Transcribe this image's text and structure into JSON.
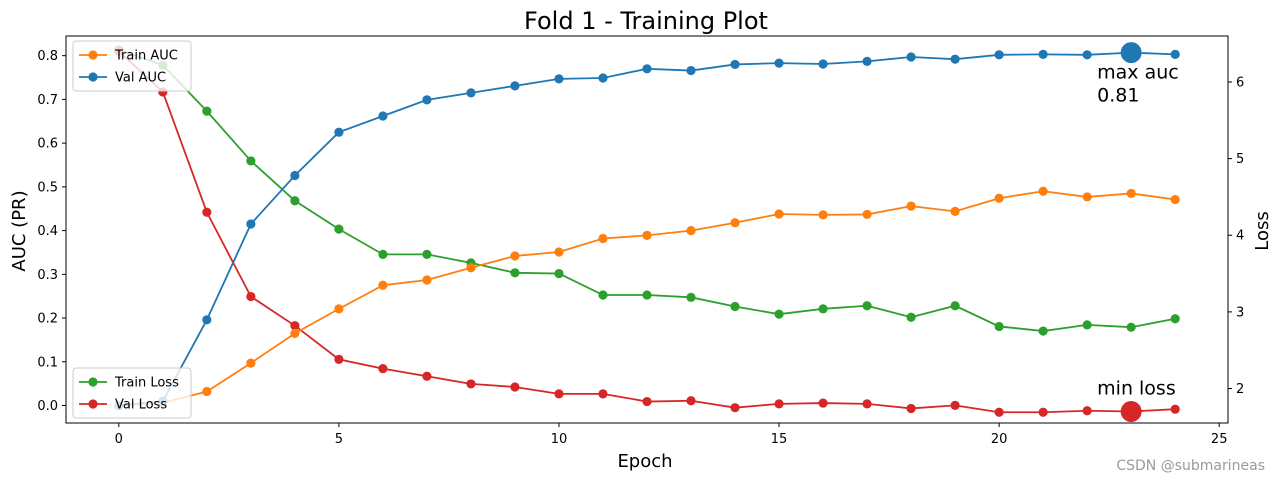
{
  "chart_data": {
    "type": "line",
    "title": "Fold 1 - Training Plot",
    "xlabel": "Epoch",
    "ylabel_left": "AUC (PR)",
    "ylabel_right": "Loss",
    "x": [
      0,
      1,
      2,
      3,
      4,
      5,
      6,
      7,
      8,
      9,
      10,
      11,
      12,
      13,
      14,
      15,
      16,
      17,
      18,
      19,
      20,
      21,
      22,
      23,
      24
    ],
    "xlim": [
      -1.2,
      25.2
    ],
    "ylim_left": [
      -0.04,
      0.845
    ],
    "ylim_right": [
      1.55,
      6.6
    ],
    "xticks": [
      0,
      5,
      10,
      15,
      20,
      25
    ],
    "yticks_left": [
      0.0,
      0.1,
      0.2,
      0.3,
      0.4,
      0.5,
      0.6,
      0.7,
      0.8
    ],
    "yticks_right": [
      2,
      3,
      4,
      5,
      6
    ],
    "grid": false,
    "series": [
      {
        "name": "Train AUC",
        "axis": "left",
        "color": "#ff7f0e",
        "values": [
          0.0,
          0.006,
          0.032,
          0.097,
          0.165,
          0.221,
          0.275,
          0.287,
          0.315,
          0.342,
          0.351,
          0.382,
          0.389,
          0.4,
          0.418,
          0.438,
          0.436,
          0.437,
          0.456,
          0.444,
          0.474,
          0.49,
          0.477,
          0.485,
          0.471
        ]
      },
      {
        "name": "Val AUC",
        "axis": "left",
        "color": "#1f77b4",
        "values": [
          0.0,
          0.01,
          0.196,
          0.415,
          0.526,
          0.625,
          0.662,
          0.699,
          0.715,
          0.731,
          0.747,
          0.749,
          0.77,
          0.766,
          0.78,
          0.783,
          0.781,
          0.787,
          0.797,
          0.792,
          0.802,
          0.803,
          0.802,
          0.807,
          0.803
        ]
      },
      {
        "name": "Train Loss",
        "axis": "right",
        "color": "#2ca02c",
        "values": [
          6.42,
          6.22,
          5.62,
          4.97,
          4.45,
          4.08,
          3.75,
          3.75,
          3.64,
          3.51,
          3.5,
          3.22,
          3.22,
          3.19,
          3.07,
          2.97,
          3.04,
          3.08,
          2.93,
          3.08,
          2.81,
          2.75,
          2.83,
          2.8,
          2.91
        ]
      },
      {
        "name": "Val Loss",
        "axis": "right",
        "color": "#d62728",
        "values": [
          6.4,
          5.87,
          4.3,
          3.2,
          2.82,
          2.38,
          2.26,
          2.16,
          2.06,
          2.02,
          1.93,
          1.93,
          1.83,
          1.84,
          1.75,
          1.8,
          1.81,
          1.8,
          1.74,
          1.78,
          1.69,
          1.69,
          1.71,
          1.7,
          1.73
        ]
      }
    ],
    "legends": [
      {
        "placement": "top-left",
        "entries": [
          "Train AUC",
          "Val AUC"
        ]
      },
      {
        "placement": "bottom-left",
        "entries": [
          "Train Loss",
          "Val Loss"
        ]
      }
    ],
    "annotations": [
      {
        "series": "Val AUC",
        "x": 23,
        "text_line1": "max auc",
        "text_line2": "0.81",
        "marker_color": "#1f77b4"
      },
      {
        "series": "Val Loss",
        "x": 23,
        "text_line1": "min loss",
        "text_line2": "",
        "marker_color": "#d62728"
      }
    ]
  },
  "watermark": "CSDN @submarineas"
}
